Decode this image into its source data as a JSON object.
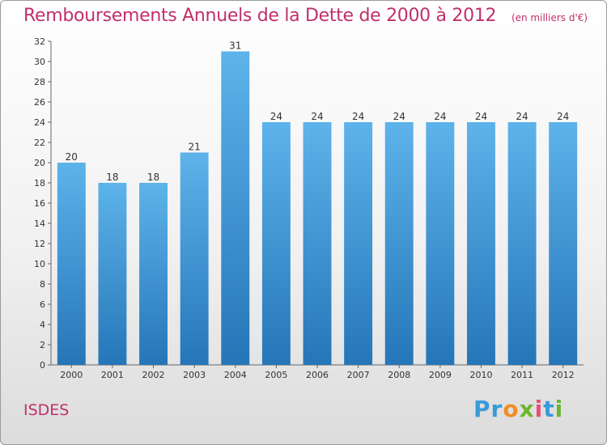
{
  "header": {
    "title": "Remboursements Annuels de la Dette de 2000 à 2012",
    "subtitle": "(en milliers d'€)"
  },
  "footer": {
    "place": "ISDES",
    "logo_letters": [
      "P",
      "r",
      "o",
      "x",
      "i",
      "t",
      "i"
    ],
    "logo_colors": [
      "#3a9ad9",
      "#3a9ad9",
      "#f28c28",
      "#6ab82e",
      "#e94e77",
      "#3a9ad9",
      "#6ab82e"
    ]
  },
  "chart_data": {
    "type": "bar",
    "title": "Remboursements Annuels de la Dette de 2000 à 2012",
    "xlabel": "",
    "ylabel": "",
    "categories": [
      "2000",
      "2001",
      "2002",
      "2003",
      "2004",
      "2005",
      "2006",
      "2007",
      "2008",
      "2009",
      "2010",
      "2011",
      "2012"
    ],
    "values": [
      20,
      18,
      18,
      21,
      31,
      24,
      24,
      24,
      24,
      24,
      24,
      24,
      24
    ],
    "ylim": [
      0,
      32
    ],
    "ytick_step": 2,
    "grid": false,
    "legend": "none",
    "colors": {
      "bar_top": "#5db3ea",
      "bar_bottom": "#2576b8",
      "axis": "#666666",
      "title": "#c0306a"
    }
  }
}
